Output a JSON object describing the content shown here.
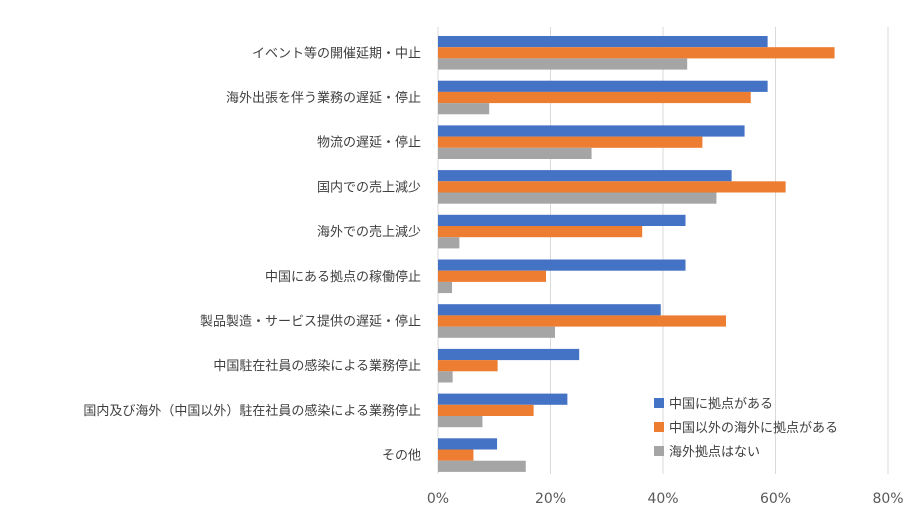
{
  "chart_data": {
    "type": "bar",
    "orientation": "horizontal",
    "categories": [
      "イベント等の開催延期・中止",
      "海外出張を伴う業務の遅延・停止",
      "物流の遅延・停止",
      "国内での売上減少",
      "海外での売上減少",
      "中国にある拠点の稼働停止",
      "製品製造・サービス提供の遅延・停止",
      "中国駐在社員の感染による業務停止",
      "国内及び海外（中国以外）駐在社員の感染による業務停止",
      "その他"
    ],
    "series": [
      {
        "name": "中国に拠点がある",
        "color": "#4472c4",
        "values": [
          58.6,
          58.6,
          54.5,
          52.2,
          44.0,
          44.0,
          39.6,
          25.1,
          23.0,
          10.5
        ]
      },
      {
        "name": "中国以外の海外に拠点がある",
        "color": "#ed7d31",
        "values": [
          70.5,
          55.6,
          47.0,
          61.8,
          36.3,
          19.2,
          51.2,
          10.6,
          17.0,
          6.3
        ]
      },
      {
        "name": "海外拠点はない",
        "color": "#a5a5a5",
        "values": [
          44.3,
          9.1,
          27.3,
          49.5,
          3.8,
          2.5,
          20.8,
          2.6,
          7.9,
          15.6
        ]
      }
    ],
    "xlim": [
      0,
      80
    ],
    "xticks": [
      0,
      20,
      40,
      60,
      80
    ],
    "tick_labels": [
      "0%",
      "20%",
      "40%",
      "60%",
      "80%"
    ],
    "grid": true,
    "legend_position": "bottom-right"
  }
}
